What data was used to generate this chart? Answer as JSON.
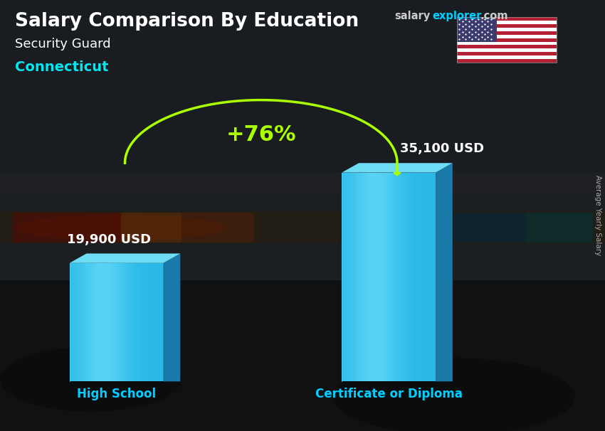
{
  "title": "Salary Comparison By Education",
  "subtitle": "Security Guard",
  "location": "Connecticut",
  "categories": [
    "High School",
    "Certificate or Diploma"
  ],
  "values": [
    19900,
    35100
  ],
  "value_labels": [
    "19,900 USD",
    "35,100 USD"
  ],
  "pct_change": "+76%",
  "ylabel_rotated": "Average Yearly Salary",
  "bg_color": "#2a2e35",
  "title_color": "#ffffff",
  "subtitle_color": "#ffffff",
  "location_color": "#00e8f0",
  "category_color": "#00cfff",
  "value_label_color": "#ffffff",
  "pct_color": "#aaff00",
  "arrow_color": "#aaff00",
  "bar_front_color": "#29b8e8",
  "bar_top_color": "#6ddcf5",
  "bar_side_color": "#1a7aaa",
  "bar_left_color": "#1a9acc",
  "site_color_salary": "#cccccc",
  "site_color_explorer": "#00cfff"
}
